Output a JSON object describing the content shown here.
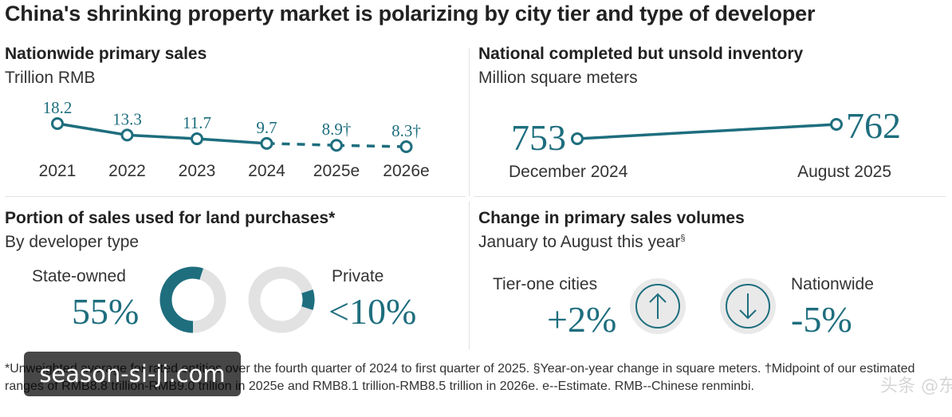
{
  "title": "China's shrinking property market is polarizing by city tier and type of developer",
  "colors": {
    "teal": "#1e6e7e",
    "gray": "#e2e2e2",
    "text": "#222222"
  },
  "chart_data": [
    {
      "type": "line",
      "title": "Nationwide primary sales",
      "subtitle": "Trillion RMB",
      "x": [
        "2021",
        "2022",
        "2023",
        "2024",
        "2025e",
        "2026e"
      ],
      "values": [
        18.2,
        13.3,
        11.7,
        9.7,
        8.9,
        8.3
      ],
      "value_labels": [
        "18.2",
        "13.3",
        "11.7",
        "9.7",
        "8.9†",
        "8.3†"
      ],
      "estimated": [
        false,
        false,
        false,
        false,
        true,
        true
      ],
      "segment_style": [
        "solid",
        "solid",
        "solid",
        "dashed",
        "dashed"
      ]
    },
    {
      "type": "line",
      "title": "National completed but unsold inventory",
      "subtitle": "Million square meters",
      "x": [
        "December 2024",
        "August 2025"
      ],
      "values": [
        753,
        762
      ],
      "value_labels": [
        "753",
        "762"
      ]
    },
    {
      "type": "pie",
      "title": "Portion of sales used for land purchases*",
      "subtitle": "By developer type",
      "series": [
        {
          "name": "State-owned",
          "label": "55%",
          "value": 55
        },
        {
          "name": "Private",
          "label": "<10%",
          "value": 10
        }
      ]
    },
    {
      "type": "table",
      "title": "Change in primary sales volumes",
      "subtitle": "January to August this year",
      "subtitle_mark": "§",
      "rows": [
        {
          "name": "Tier-one cities",
          "label": "+2%",
          "value": 2,
          "direction": "up-arrow-icon"
        },
        {
          "name": "Nationwide",
          "label": "-5%",
          "value": -5,
          "direction": "down-arrow-icon"
        }
      ]
    }
  ],
  "footnote": "*Unweighted average for rated entities over the fourth quarter of 2024 to first quarter of 2025. §Year-on-year change in square meters. †Midpoint of our estimated ranges of RMB8.8 trillion-RMB9.0 trillion in 2025e and RMB8.1 trillion-RMB8.5 trillion in 2026e. e--Estimate. RMB--Chinese renminbi.",
  "watermark": "season-si-ji.com",
  "watermark2": "头条 @东吴兰"
}
